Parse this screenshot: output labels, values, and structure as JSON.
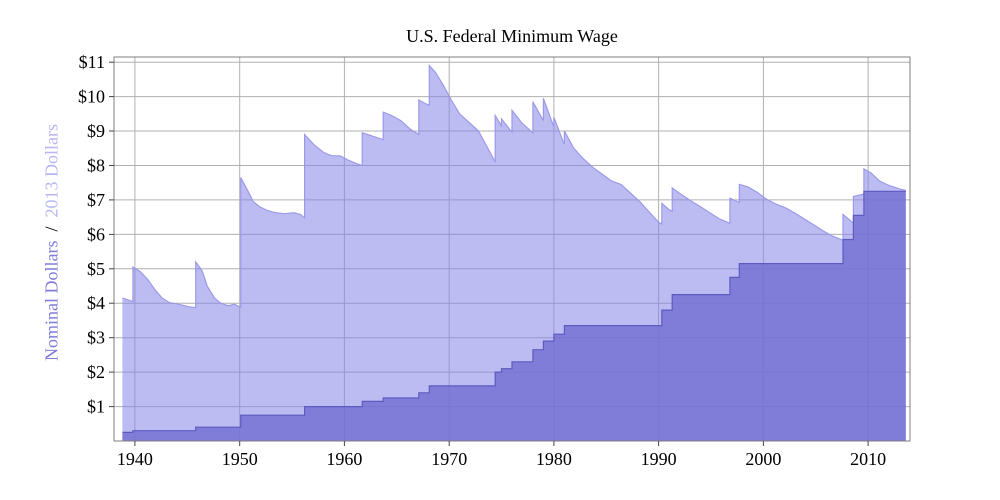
{
  "chart_data": {
    "type": "area",
    "title": "U.S. Federal Minimum Wage",
    "ylabel": {
      "parts": [
        {
          "text": "Nominal Dollars",
          "color": "#7f7dd8"
        },
        {
          "text": "  /  ",
          "color": "#000000"
        },
        {
          "text": "2013 Dollars",
          "color": "#b7b6f0"
        }
      ]
    },
    "xlim": [
      1938,
      2014
    ],
    "ylim": [
      0,
      11.15
    ],
    "x_ticks": [
      1940,
      1950,
      1960,
      1970,
      1980,
      1990,
      2000,
      2010
    ],
    "y_ticks": [
      1,
      2,
      3,
      4,
      5,
      6,
      7,
      8,
      9,
      10,
      11
    ],
    "y_tick_prefix": "$",
    "grid": true,
    "grid_color": "#b0b0b0",
    "border_color": "#7f7f7f",
    "tick_color": "#444444",
    "series": [
      {
        "name": "2013 Dollars",
        "interp": "linear",
        "fill": "#8583e8",
        "fill_opacity": 0.55,
        "edge": "#9c9ae8",
        "points": [
          [
            1938.8,
            4.15
          ],
          [
            1939.3,
            4.1
          ],
          [
            1939.8,
            4.05
          ],
          [
            1939.8,
            5.05
          ],
          [
            1940.5,
            4.92
          ],
          [
            1941.2,
            4.7
          ],
          [
            1941.9,
            4.4
          ],
          [
            1942.6,
            4.15
          ],
          [
            1943.3,
            4.02
          ],
          [
            1944.2,
            3.97
          ],
          [
            1945.1,
            3.9
          ],
          [
            1945.8,
            3.87
          ],
          [
            1945.8,
            5.2
          ],
          [
            1946.4,
            4.95
          ],
          [
            1946.9,
            4.5
          ],
          [
            1947.6,
            4.15
          ],
          [
            1948.2,
            4.0
          ],
          [
            1948.9,
            3.93
          ],
          [
            1949.5,
            3.97
          ],
          [
            1950.1,
            3.88
          ],
          [
            1950.1,
            7.65
          ],
          [
            1950.8,
            7.25
          ],
          [
            1951.3,
            6.95
          ],
          [
            1951.9,
            6.8
          ],
          [
            1952.6,
            6.7
          ],
          [
            1953.4,
            6.63
          ],
          [
            1954.3,
            6.6
          ],
          [
            1955.2,
            6.63
          ],
          [
            1955.8,
            6.58
          ],
          [
            1956.2,
            6.48
          ],
          [
            1956.2,
            8.9
          ],
          [
            1957.1,
            8.6
          ],
          [
            1958,
            8.38
          ],
          [
            1958.8,
            8.28
          ],
          [
            1959.6,
            8.28
          ],
          [
            1960.4,
            8.15
          ],
          [
            1961.2,
            8.05
          ],
          [
            1961.7,
            8.0
          ],
          [
            1961.7,
            8.95
          ],
          [
            1962.5,
            8.87
          ],
          [
            1963.2,
            8.8
          ],
          [
            1963.7,
            8.75
          ],
          [
            1963.7,
            9.55
          ],
          [
            1964.5,
            9.45
          ],
          [
            1965.4,
            9.3
          ],
          [
            1966.3,
            9.05
          ],
          [
            1967.1,
            8.9
          ],
          [
            1967.1,
            9.9
          ],
          [
            1967.7,
            9.8
          ],
          [
            1968.1,
            9.75
          ],
          [
            1968.1,
            10.9
          ],
          [
            1968.7,
            10.7
          ],
          [
            1969.4,
            10.35
          ],
          [
            1970.2,
            9.9
          ],
          [
            1971,
            9.5
          ],
          [
            1971.9,
            9.25
          ],
          [
            1972.8,
            9.0
          ],
          [
            1973.6,
            8.55
          ],
          [
            1974.4,
            8.1
          ],
          [
            1974.4,
            9.45
          ],
          [
            1974.9,
            9.2
          ],
          [
            1975,
            9.15
          ],
          [
            1975,
            9.35
          ],
          [
            1975.9,
            9.0
          ],
          [
            1976,
            8.97
          ],
          [
            1976,
            9.6
          ],
          [
            1976.9,
            9.25
          ],
          [
            1977.6,
            9.05
          ],
          [
            1978,
            8.95
          ],
          [
            1978,
            9.85
          ],
          [
            1978.9,
            9.35
          ],
          [
            1979,
            9.32
          ],
          [
            1979,
            9.95
          ],
          [
            1979.9,
            9.2
          ],
          [
            1980,
            9.12
          ],
          [
            1980,
            9.4
          ],
          [
            1980.9,
            8.68
          ],
          [
            1981,
            8.62
          ],
          [
            1981,
            9.0
          ],
          [
            1981.9,
            8.5
          ],
          [
            1982.8,
            8.2
          ],
          [
            1983.7,
            7.95
          ],
          [
            1984.6,
            7.75
          ],
          [
            1985.5,
            7.55
          ],
          [
            1986.4,
            7.45
          ],
          [
            1987.3,
            7.2
          ],
          [
            1988.2,
            6.95
          ],
          [
            1989.1,
            6.65
          ],
          [
            1990,
            6.35
          ],
          [
            1990.3,
            6.3
          ],
          [
            1990.3,
            6.9
          ],
          [
            1991,
            6.72
          ],
          [
            1991.3,
            6.67
          ],
          [
            1991.3,
            7.35
          ],
          [
            1992.2,
            7.15
          ],
          [
            1993.1,
            6.97
          ],
          [
            1994,
            6.8
          ],
          [
            1994.9,
            6.62
          ],
          [
            1995.8,
            6.45
          ],
          [
            1996.8,
            6.32
          ],
          [
            1996.8,
            7.05
          ],
          [
            1997.4,
            6.97
          ],
          [
            1997.7,
            6.93
          ],
          [
            1997.7,
            7.45
          ],
          [
            1998.5,
            7.38
          ],
          [
            1999.4,
            7.22
          ],
          [
            2000.3,
            7.02
          ],
          [
            2001.2,
            6.88
          ],
          [
            2002.1,
            6.77
          ],
          [
            2003,
            6.62
          ],
          [
            2003.9,
            6.45
          ],
          [
            2004.8,
            6.28
          ],
          [
            2005.7,
            6.1
          ],
          [
            2006.6,
            5.95
          ],
          [
            2007.6,
            5.83
          ],
          [
            2007.6,
            6.58
          ],
          [
            2008.3,
            6.4
          ],
          [
            2008.6,
            6.32
          ],
          [
            2008.6,
            7.1
          ],
          [
            2009.3,
            7.15
          ],
          [
            2009.6,
            7.17
          ],
          [
            2009.6,
            7.9
          ],
          [
            2010.3,
            7.78
          ],
          [
            2011.1,
            7.55
          ],
          [
            2012,
            7.42
          ],
          [
            2013,
            7.32
          ],
          [
            2013.6,
            7.28
          ]
        ]
      },
      {
        "name": "Nominal Dollars",
        "interp": "step",
        "fill": "#706ed2",
        "fill_opacity": 0.8,
        "edge": "#5d5bc0",
        "points": [
          [
            1938.8,
            0.25
          ],
          [
            1939.8,
            0.3
          ],
          [
            1945.8,
            0.4
          ],
          [
            1950.1,
            0.75
          ],
          [
            1956.2,
            1.0
          ],
          [
            1961.7,
            1.15
          ],
          [
            1963.7,
            1.25
          ],
          [
            1967.1,
            1.4
          ],
          [
            1968.1,
            1.6
          ],
          [
            1974.4,
            2.0
          ],
          [
            1975,
            2.1
          ],
          [
            1976,
            2.3
          ],
          [
            1978,
            2.65
          ],
          [
            1979,
            2.9
          ],
          [
            1980,
            3.1
          ],
          [
            1981,
            3.35
          ],
          [
            1990.3,
            3.8
          ],
          [
            1991.3,
            4.25
          ],
          [
            1996.8,
            4.75
          ],
          [
            1997.7,
            5.15
          ],
          [
            2007.6,
            5.85
          ],
          [
            2008.6,
            6.55
          ],
          [
            2009.6,
            7.25
          ],
          [
            2013.6,
            7.25
          ]
        ]
      }
    ]
  }
}
